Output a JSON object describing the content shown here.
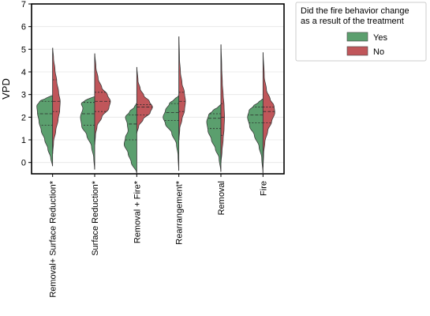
{
  "chart_data": {
    "type": "violin",
    "split": true,
    "ylabel": "VPD",
    "ylim": [
      -0.5,
      7.0
    ],
    "yticks": [
      0,
      1,
      2,
      3,
      4,
      5,
      6,
      7
    ],
    "grid": "horizontal",
    "categories": [
      "Removal+ Surface Reduction*",
      "Surface Reduction*",
      "Removal + Fire*",
      "Rearrangement*",
      "Removal",
      "Fire"
    ],
    "legend": {
      "title_lines": [
        "Did the fire behavior change",
        "as a result of the treatment"
      ],
      "placement": "outside-right",
      "entries": [
        {
          "label": "Yes",
          "color": "#5b9f6e"
        },
        {
          "label": "No",
          "color": "#c0565a"
        }
      ]
    },
    "series": [
      {
        "name": "Yes",
        "color": "#5b9f6e",
        "violins": [
          {
            "min": -0.15,
            "max": 2.95,
            "q1": 1.65,
            "median": 2.15,
            "q3": 2.7,
            "profile": [
              [
                -0.15,
                0.01
              ],
              [
                0.2,
                0.12
              ],
              [
                0.6,
                0.3
              ],
              [
                1.0,
                0.5
              ],
              [
                1.4,
                0.72
              ],
              [
                1.8,
                0.86
              ],
              [
                2.2,
                0.96
              ],
              [
                2.5,
                1.0
              ],
              [
                2.7,
                0.82
              ],
              [
                2.85,
                0.4
              ],
              [
                2.95,
                0.06
              ]
            ]
          },
          {
            "min": -0.3,
            "max": 2.9,
            "q1": 1.65,
            "median": 2.15,
            "q3": 2.65,
            "profile": [
              [
                -0.3,
                0.01
              ],
              [
                0.2,
                0.06
              ],
              [
                0.7,
                0.2
              ],
              [
                1.2,
                0.5
              ],
              [
                1.6,
                0.82
              ],
              [
                2.0,
                0.9
              ],
              [
                2.4,
                0.75
              ],
              [
                2.6,
                0.85
              ],
              [
                2.75,
                0.6
              ],
              [
                2.85,
                0.25
              ],
              [
                2.9,
                0.04
              ]
            ]
          },
          {
            "min": -0.45,
            "max": 2.6,
            "q1": 1.0,
            "median": 1.7,
            "q3": 2.1,
            "profile": [
              [
                -0.45,
                0.01
              ],
              [
                0.0,
                0.35
              ],
              [
                0.4,
                0.55
              ],
              [
                0.8,
                0.8
              ],
              [
                1.1,
                0.72
              ],
              [
                1.4,
                0.55
              ],
              [
                1.7,
                0.6
              ],
              [
                2.0,
                0.72
              ],
              [
                2.25,
                0.45
              ],
              [
                2.45,
                0.15
              ],
              [
                2.6,
                0.03
              ]
            ]
          },
          {
            "min": -0.35,
            "max": 2.95,
            "q1": 1.85,
            "median": 2.2,
            "q3": 2.6,
            "profile": [
              [
                -0.35,
                0.01
              ],
              [
                0.3,
                0.05
              ],
              [
                0.8,
                0.15
              ],
              [
                1.3,
                0.45
              ],
              [
                1.7,
                0.85
              ],
              [
                2.0,
                1.0
              ],
              [
                2.3,
                0.85
              ],
              [
                2.6,
                0.6
              ],
              [
                2.8,
                0.28
              ],
              [
                2.9,
                0.08
              ],
              [
                2.95,
                0.02
              ]
            ]
          },
          {
            "min": -0.4,
            "max": 2.55,
            "q1": 1.5,
            "median": 1.95,
            "q3": 2.15,
            "profile": [
              [
                -0.4,
                0.01
              ],
              [
                0.2,
                0.12
              ],
              [
                0.6,
                0.35
              ],
              [
                1.0,
                0.6
              ],
              [
                1.4,
                0.82
              ],
              [
                1.8,
                0.9
              ],
              [
                2.1,
                0.78
              ],
              [
                2.3,
                0.5
              ],
              [
                2.45,
                0.18
              ],
              [
                2.55,
                0.03
              ]
            ]
          },
          {
            "min": -0.45,
            "max": 2.8,
            "q1": 1.75,
            "median": 2.1,
            "q3": 2.45,
            "profile": [
              [
                -0.45,
                0.01
              ],
              [
                0.2,
                0.08
              ],
              [
                0.7,
                0.25
              ],
              [
                1.2,
                0.55
              ],
              [
                1.6,
                0.85
              ],
              [
                2.0,
                0.98
              ],
              [
                2.3,
                0.88
              ],
              [
                2.5,
                0.6
              ],
              [
                2.65,
                0.3
              ],
              [
                2.8,
                0.04
              ]
            ]
          }
        ]
      },
      {
        "name": "No",
        "color": "#c0565a",
        "violins": [
          {
            "min": 0.4,
            "max": 5.05,
            "q1": 2.25,
            "median": 2.7,
            "q3": 3.65,
            "profile": [
              [
                0.4,
                0.01
              ],
              [
                0.9,
                0.06
              ],
              [
                1.4,
                0.2
              ],
              [
                1.9,
                0.35
              ],
              [
                2.3,
                0.45
              ],
              [
                2.7,
                0.48
              ],
              [
                3.1,
                0.38
              ],
              [
                3.6,
                0.26
              ],
              [
                4.1,
                0.15
              ],
              [
                4.6,
                0.06
              ],
              [
                5.05,
                0.01
              ]
            ]
          },
          {
            "min": 0.8,
            "max": 4.8,
            "q1": 2.25,
            "median": 2.7,
            "q3": 3.1,
            "profile": [
              [
                0.8,
                0.01
              ],
              [
                1.2,
                0.05
              ],
              [
                1.6,
                0.15
              ],
              [
                2.0,
                0.45
              ],
              [
                2.4,
                0.9
              ],
              [
                2.7,
                1.0
              ],
              [
                3.0,
                0.8
              ],
              [
                3.3,
                0.45
              ],
              [
                3.7,
                0.22
              ],
              [
                4.2,
                0.08
              ],
              [
                4.8,
                0.01
              ]
            ]
          },
          {
            "min": 1.3,
            "max": 4.2,
            "q1": 2.1,
            "median": 2.45,
            "q3": 2.55,
            "profile": [
              [
                1.3,
                0.01
              ],
              [
                1.6,
                0.12
              ],
              [
                1.9,
                0.4
              ],
              [
                2.2,
                0.85
              ],
              [
                2.45,
                1.0
              ],
              [
                2.7,
                0.8
              ],
              [
                2.95,
                0.45
              ],
              [
                3.25,
                0.22
              ],
              [
                3.6,
                0.08
              ],
              [
                4.2,
                0.01
              ]
            ]
          },
          {
            "min": 1.0,
            "max": 5.55,
            "q1": 2.25,
            "median": 2.7,
            "q3": 3.1,
            "profile": [
              [
                1.0,
                0.01
              ],
              [
                1.5,
                0.06
              ],
              [
                1.9,
                0.2
              ],
              [
                2.3,
                0.36
              ],
              [
                2.7,
                0.42
              ],
              [
                3.1,
                0.35
              ],
              [
                3.5,
                0.2
              ],
              [
                4.0,
                0.1
              ],
              [
                4.6,
                0.04
              ],
              [
                5.55,
                0.01
              ]
            ]
          },
          {
            "min": 0.0,
            "max": 5.2,
            "q1": 1.2,
            "median": 2.0,
            "q3": 2.6,
            "profile": [
              [
                0.0,
                0.01
              ],
              [
                0.5,
                0.07
              ],
              [
                1.0,
                0.14
              ],
              [
                1.5,
                0.2
              ],
              [
                2.0,
                0.23
              ],
              [
                2.5,
                0.2
              ],
              [
                3.0,
                0.14
              ],
              [
                3.5,
                0.09
              ],
              [
                4.2,
                0.05
              ],
              [
                5.2,
                0.01
              ]
            ]
          },
          {
            "min": -0.2,
            "max": 4.85,
            "q1": 1.75,
            "median": 2.25,
            "q3": 2.45,
            "profile": [
              [
                -0.2,
                0.01
              ],
              [
                0.4,
                0.04
              ],
              [
                0.9,
                0.12
              ],
              [
                1.4,
                0.3
              ],
              [
                1.8,
                0.55
              ],
              [
                2.2,
                0.75
              ],
              [
                2.5,
                0.7
              ],
              [
                2.8,
                0.45
              ],
              [
                3.2,
                0.22
              ],
              [
                3.8,
                0.08
              ],
              [
                4.85,
                0.01
              ]
            ]
          }
        ]
      }
    ]
  }
}
